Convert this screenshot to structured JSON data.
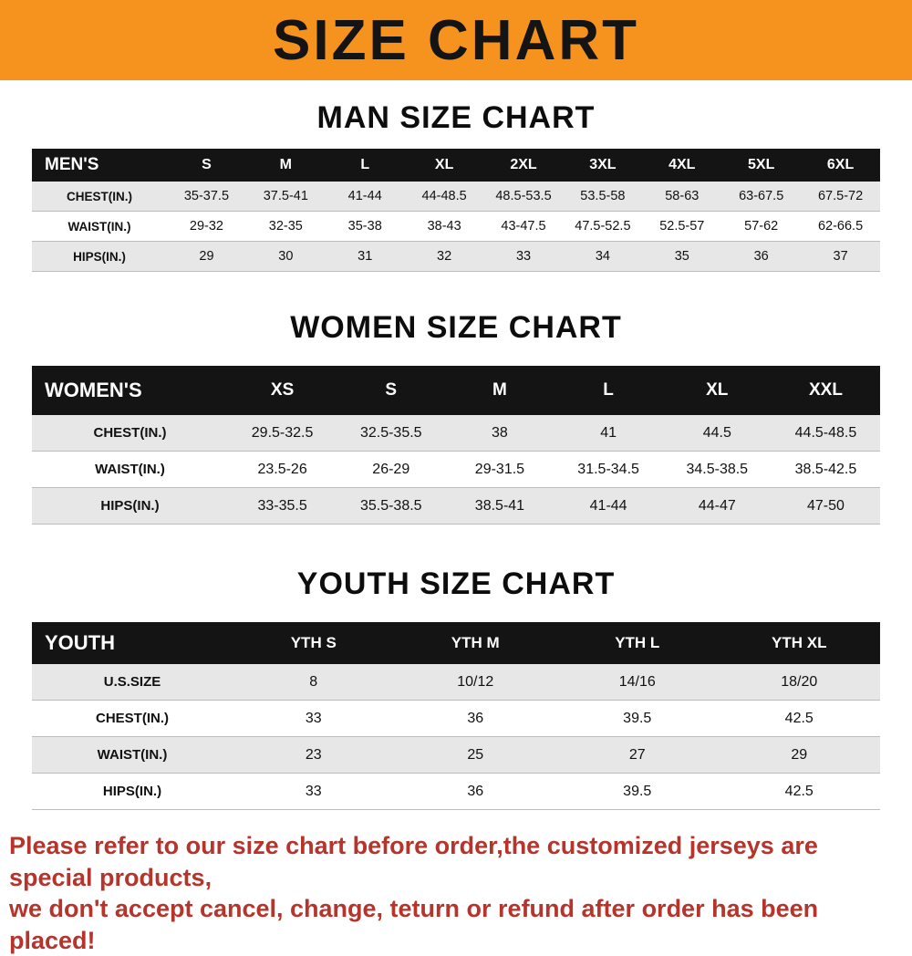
{
  "banner": {
    "title": "SIZE CHART",
    "bg_color": "#F6921E"
  },
  "men": {
    "heading": "MAN SIZE CHART",
    "header": [
      "MEN'S",
      "S",
      "M",
      "L",
      "XL",
      "2XL",
      "3XL",
      "4XL",
      "5XL",
      "6XL"
    ],
    "rows": [
      {
        "label": "CHEST(IN.)",
        "values": [
          "35-37.5",
          "37.5-41",
          "41-44",
          "44-48.5",
          "48.5-53.5",
          "53.5-58",
          "58-63",
          "63-67.5",
          "67.5-72"
        ]
      },
      {
        "label": "WAIST(IN.)",
        "values": [
          "29-32",
          "32-35",
          "35-38",
          "38-43",
          "43-47.5",
          "47.5-52.5",
          "52.5-57",
          "57-62",
          "62-66.5"
        ]
      },
      {
        "label": "HIPS(IN.)",
        "values": [
          "29",
          "30",
          "31",
          "32",
          "33",
          "34",
          "35",
          "36",
          "37"
        ]
      }
    ]
  },
  "women": {
    "heading": "WOMEN SIZE CHART",
    "header": [
      "WOMEN'S",
      "XS",
      "S",
      "M",
      "L",
      "XL",
      "XXL"
    ],
    "rows": [
      {
        "label": "CHEST(IN.)",
        "values": [
          "29.5-32.5",
          "32.5-35.5",
          "38",
          "41",
          "44.5",
          "44.5-48.5"
        ]
      },
      {
        "label": "WAIST(IN.)",
        "values": [
          "23.5-26",
          "26-29",
          "29-31.5",
          "31.5-34.5",
          "34.5-38.5",
          "38.5-42.5"
        ]
      },
      {
        "label": "HIPS(IN.)",
        "values": [
          "33-35.5",
          "35.5-38.5",
          "38.5-41",
          "41-44",
          "44-47",
          "47-50"
        ]
      }
    ]
  },
  "youth": {
    "heading": "YOUTH SIZE CHART",
    "header": [
      "YOUTH",
      "YTH S",
      "YTH M",
      "YTH L",
      "YTH XL"
    ],
    "rows": [
      {
        "label": "U.S.SIZE",
        "values": [
          "8",
          "10/12",
          "14/16",
          "18/20"
        ]
      },
      {
        "label": "CHEST(IN.)",
        "values": [
          "33",
          "36",
          "39.5",
          "42.5"
        ]
      },
      {
        "label": "WAIST(IN.)",
        "values": [
          "23",
          "25",
          "27",
          "29"
        ]
      },
      {
        "label": "HIPS(IN.)",
        "values": [
          "33",
          "36",
          "39.5",
          "42.5"
        ]
      }
    ]
  },
  "disclaimer": {
    "line1": "Please refer to our size chart before order,the customized jerseys are special products,",
    "line2": "we don't accept cancel, change, teturn or refund after order has been placed!",
    "color": "#b5352c"
  }
}
